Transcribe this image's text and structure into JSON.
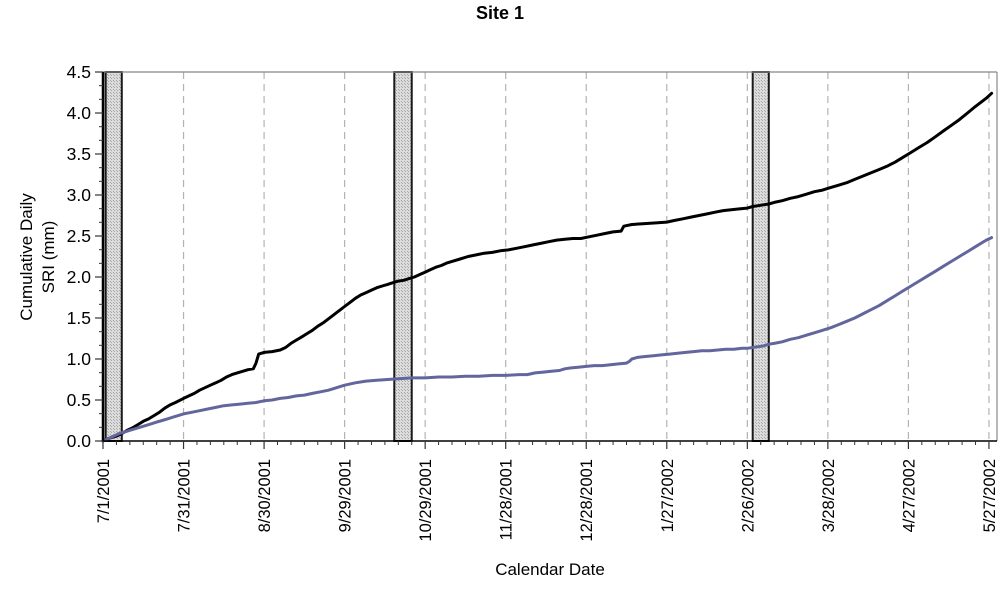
{
  "chart_data": {
    "type": "line",
    "title": "Site 1",
    "xlabel": "Calendar Date",
    "ylabel_lines": [
      "Cumulative Daily",
      "SRI (mm)"
    ],
    "ylim": [
      0,
      4.5
    ],
    "y_major_step": 0.5,
    "y_minor_per_major": 3,
    "y_tick_labels": [
      "0.0",
      "0.5",
      "1.0",
      "1.5",
      "2.0",
      "2.5",
      "3.0",
      "3.5",
      "4.0",
      "4.5"
    ],
    "x_tick_labels": [
      "7/1/2001",
      "7/31/2001",
      "8/30/2001",
      "9/29/2001",
      "10/29/2001",
      "11/28/2001",
      "12/28/2001",
      "1/27/2002",
      "2/26/2002",
      "3/28/2002",
      "4/27/2002",
      "5/27/2002"
    ],
    "x_tick_days": [
      0,
      30,
      60,
      90,
      120,
      150,
      180,
      210,
      240,
      270,
      300,
      330
    ],
    "x_minor_step_days": 5,
    "x_domain_days": [
      0,
      333
    ],
    "grid": "vertical-dashed",
    "legend": "none",
    "highlight_bands": [
      {
        "name": "shaded-period-1",
        "start_day": 1,
        "end_day": 7,
        "approx_dates": "7/2/2001 to 7/8/2001"
      },
      {
        "name": "shaded-period-2",
        "start_day": 108.5,
        "end_day": 115,
        "approx_dates": "10/18/2001 to 10/24/2001"
      },
      {
        "name": "shaded-period-3",
        "start_day": 242,
        "end_day": 248,
        "approx_dates": "2/28/2002 to 3/6/2002"
      }
    ],
    "series": [
      {
        "name": "upper-black-series",
        "color": "#000000",
        "width": 3,
        "points": [
          [
            0,
            0
          ],
          [
            1,
            0.02
          ],
          [
            3,
            0.04
          ],
          [
            5,
            0.06
          ],
          [
            7,
            0.09
          ],
          [
            9,
            0.13
          ],
          [
            11,
            0.16
          ],
          [
            13,
            0.2
          ],
          [
            15,
            0.24
          ],
          [
            17,
            0.27
          ],
          [
            19,
            0.31
          ],
          [
            21,
            0.35
          ],
          [
            23,
            0.4
          ],
          [
            25,
            0.44
          ],
          [
            27,
            0.47
          ],
          [
            30,
            0.52
          ],
          [
            32,
            0.55
          ],
          [
            34,
            0.58
          ],
          [
            36,
            0.62
          ],
          [
            38,
            0.65
          ],
          [
            40,
            0.68
          ],
          [
            42,
            0.71
          ],
          [
            44,
            0.74
          ],
          [
            46,
            0.78
          ],
          [
            48,
            0.81
          ],
          [
            50,
            0.83
          ],
          [
            52,
            0.85
          ],
          [
            54,
            0.87
          ],
          [
            56,
            0.88
          ],
          [
            57,
            0.95
          ],
          [
            58,
            1.06
          ],
          [
            60,
            1.08
          ],
          [
            63,
            1.09
          ],
          [
            66,
            1.11
          ],
          [
            68,
            1.14
          ],
          [
            70,
            1.19
          ],
          [
            72,
            1.23
          ],
          [
            74,
            1.27
          ],
          [
            76,
            1.31
          ],
          [
            78,
            1.35
          ],
          [
            80,
            1.4
          ],
          [
            82,
            1.44
          ],
          [
            84,
            1.49
          ],
          [
            86,
            1.54
          ],
          [
            88,
            1.59
          ],
          [
            90,
            1.64
          ],
          [
            92,
            1.69
          ],
          [
            94,
            1.74
          ],
          [
            96,
            1.78
          ],
          [
            98,
            1.81
          ],
          [
            100,
            1.84
          ],
          [
            102,
            1.87
          ],
          [
            104,
            1.89
          ],
          [
            106,
            1.91
          ],
          [
            108,
            1.93
          ],
          [
            110,
            1.95
          ],
          [
            112,
            1.96
          ],
          [
            114,
            1.98
          ],
          [
            116,
            2
          ],
          [
            118,
            2.03
          ],
          [
            120,
            2.06
          ],
          [
            122,
            2.09
          ],
          [
            124,
            2.12
          ],
          [
            126,
            2.14
          ],
          [
            128,
            2.17
          ],
          [
            130,
            2.19
          ],
          [
            133,
            2.22
          ],
          [
            136,
            2.25
          ],
          [
            139,
            2.27
          ],
          [
            142,
            2.29
          ],
          [
            145,
            2.3
          ],
          [
            148,
            2.32
          ],
          [
            151,
            2.33
          ],
          [
            154,
            2.35
          ],
          [
            157,
            2.37
          ],
          [
            160,
            2.39
          ],
          [
            163,
            2.41
          ],
          [
            166,
            2.43
          ],
          [
            169,
            2.45
          ],
          [
            172,
            2.46
          ],
          [
            175,
            2.47
          ],
          [
            178,
            2.47
          ],
          [
            181,
            2.49
          ],
          [
            184,
            2.51
          ],
          [
            187,
            2.53
          ],
          [
            190,
            2.55
          ],
          [
            193,
            2.56
          ],
          [
            194,
            2.62
          ],
          [
            197,
            2.64
          ],
          [
            201,
            2.65
          ],
          [
            206,
            2.66
          ],
          [
            210,
            2.67
          ],
          [
            213,
            2.69
          ],
          [
            216,
            2.71
          ],
          [
            219,
            2.73
          ],
          [
            222,
            2.75
          ],
          [
            225,
            2.77
          ],
          [
            228,
            2.79
          ],
          [
            231,
            2.81
          ],
          [
            234,
            2.82
          ],
          [
            237,
            2.83
          ],
          [
            240,
            2.84
          ],
          [
            242,
            2.86
          ],
          [
            244,
            2.87
          ],
          [
            246,
            2.88
          ],
          [
            248,
            2.89
          ],
          [
            250,
            2.91
          ],
          [
            253,
            2.93
          ],
          [
            256,
            2.96
          ],
          [
            259,
            2.98
          ],
          [
            262,
            3.01
          ],
          [
            265,
            3.04
          ],
          [
            268,
            3.06
          ],
          [
            271,
            3.09
          ],
          [
            274,
            3.12
          ],
          [
            277,
            3.15
          ],
          [
            280,
            3.19
          ],
          [
            283,
            3.23
          ],
          [
            286,
            3.27
          ],
          [
            289,
            3.31
          ],
          [
            292,
            3.35
          ],
          [
            295,
            3.4
          ],
          [
            298,
            3.46
          ],
          [
            301,
            3.52
          ],
          [
            304,
            3.58
          ],
          [
            307,
            3.64
          ],
          [
            310,
            3.71
          ],
          [
            313,
            3.78
          ],
          [
            316,
            3.85
          ],
          [
            319,
            3.92
          ],
          [
            322,
            4
          ],
          [
            325,
            4.08
          ],
          [
            327,
            4.13
          ],
          [
            329,
            4.18
          ],
          [
            331,
            4.24
          ]
        ]
      },
      {
        "name": "lower-blue-series",
        "color": "#62669c",
        "width": 3,
        "points": [
          [
            0,
            0
          ],
          [
            2,
            0.03
          ],
          [
            4,
            0.06
          ],
          [
            6,
            0.09
          ],
          [
            8,
            0.11
          ],
          [
            10,
            0.13
          ],
          [
            12,
            0.15
          ],
          [
            14,
            0.17
          ],
          [
            16,
            0.19
          ],
          [
            18,
            0.21
          ],
          [
            20,
            0.23
          ],
          [
            22,
            0.25
          ],
          [
            24,
            0.27
          ],
          [
            26,
            0.29
          ],
          [
            28,
            0.31
          ],
          [
            30,
            0.33
          ],
          [
            33,
            0.35
          ],
          [
            36,
            0.37
          ],
          [
            39,
            0.39
          ],
          [
            42,
            0.41
          ],
          [
            45,
            0.43
          ],
          [
            48,
            0.44
          ],
          [
            51,
            0.45
          ],
          [
            54,
            0.46
          ],
          [
            57,
            0.47
          ],
          [
            60,
            0.49
          ],
          [
            63,
            0.5
          ],
          [
            66,
            0.52
          ],
          [
            69,
            0.53
          ],
          [
            72,
            0.55
          ],
          [
            75,
            0.56
          ],
          [
            78,
            0.58
          ],
          [
            81,
            0.6
          ],
          [
            84,
            0.62
          ],
          [
            87,
            0.65
          ],
          [
            90,
            0.68
          ],
          [
            94,
            0.71
          ],
          [
            98,
            0.73
          ],
          [
            102,
            0.74
          ],
          [
            106,
            0.75
          ],
          [
            110,
            0.76
          ],
          [
            115,
            0.77
          ],
          [
            120,
            0.77
          ],
          [
            125,
            0.78
          ],
          [
            130,
            0.78
          ],
          [
            135,
            0.79
          ],
          [
            140,
            0.79
          ],
          [
            145,
            0.8
          ],
          [
            150,
            0.8
          ],
          [
            155,
            0.81
          ],
          [
            158,
            0.81
          ],
          [
            161,
            0.83
          ],
          [
            164,
            0.84
          ],
          [
            167,
            0.85
          ],
          [
            170,
            0.86
          ],
          [
            172,
            0.88
          ],
          [
            174,
            0.89
          ],
          [
            177,
            0.9
          ],
          [
            180,
            0.91
          ],
          [
            183,
            0.92
          ],
          [
            186,
            0.92
          ],
          [
            189,
            0.93
          ],
          [
            192,
            0.94
          ],
          [
            195,
            0.95
          ],
          [
            196,
            0.97
          ],
          [
            197,
            1
          ],
          [
            199,
            1.02
          ],
          [
            202,
            1.03
          ],
          [
            205,
            1.04
          ],
          [
            208,
            1.05
          ],
          [
            211,
            1.06
          ],
          [
            214,
            1.07
          ],
          [
            217,
            1.08
          ],
          [
            220,
            1.09
          ],
          [
            223,
            1.1
          ],
          [
            226,
            1.1
          ],
          [
            229,
            1.11
          ],
          [
            232,
            1.12
          ],
          [
            235,
            1.12
          ],
          [
            238,
            1.13
          ],
          [
            240,
            1.13
          ],
          [
            242,
            1.14
          ],
          [
            244,
            1.15
          ],
          [
            246,
            1.16
          ],
          [
            248,
            1.18
          ],
          [
            250,
            1.19
          ],
          [
            253,
            1.21
          ],
          [
            256,
            1.24
          ],
          [
            259,
            1.26
          ],
          [
            262,
            1.29
          ],
          [
            265,
            1.32
          ],
          [
            268,
            1.35
          ],
          [
            271,
            1.38
          ],
          [
            274,
            1.42
          ],
          [
            277,
            1.46
          ],
          [
            280,
            1.5
          ],
          [
            283,
            1.55
          ],
          [
            286,
            1.6
          ],
          [
            289,
            1.65
          ],
          [
            292,
            1.71
          ],
          [
            295,
            1.77
          ],
          [
            298,
            1.83
          ],
          [
            301,
            1.89
          ],
          [
            304,
            1.95
          ],
          [
            307,
            2.01
          ],
          [
            310,
            2.07
          ],
          [
            313,
            2.13
          ],
          [
            316,
            2.19
          ],
          [
            319,
            2.25
          ],
          [
            322,
            2.31
          ],
          [
            325,
            2.37
          ],
          [
            327,
            2.41
          ],
          [
            329,
            2.45
          ],
          [
            331,
            2.48
          ]
        ]
      }
    ],
    "colors": {
      "band_fill": "#dcdcdc",
      "band_dot": "#a8a8a8",
      "band_border": "#1a1a1a",
      "gridline": "#b3b3b3",
      "axis": "#000000",
      "frame": "#888888",
      "tick": "#333333"
    }
  }
}
